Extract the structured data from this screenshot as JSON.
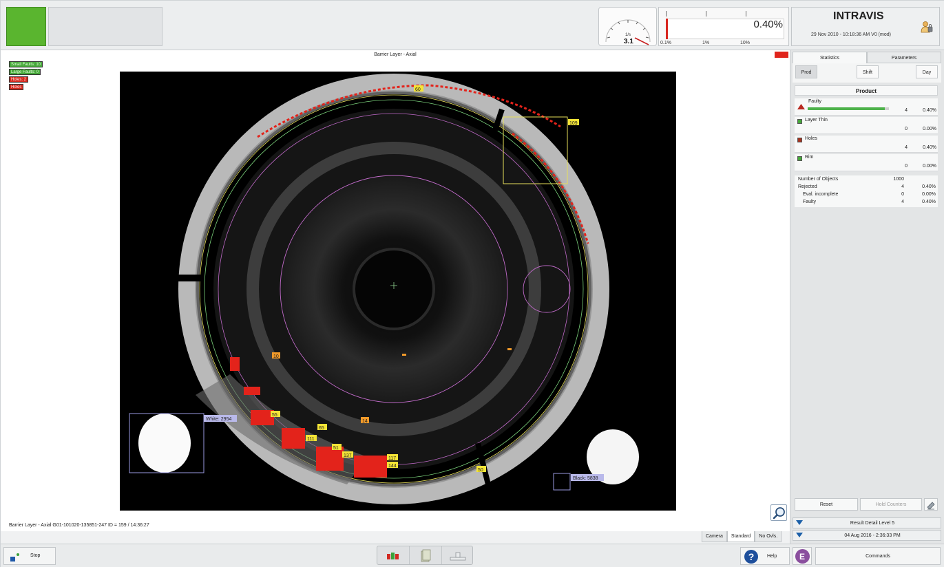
{
  "header": {
    "gauge": {
      "unit": "1/s",
      "value": "3.1"
    },
    "reject_meter": {
      "value": "0.40%",
      "fill_fraction": 0.018,
      "ticks": [
        "0.1%",
        "1%",
        "10%"
      ]
    },
    "brand": {
      "title": "INTRAVIS",
      "datetime": "29 Nov 2010 - 10:18:36 AM  V0 (mod)"
    }
  },
  "view": {
    "title": "Barrier Layer - Axial",
    "caption": "Barrier Layer - Axial G01-101020-135851-247  ID = 159 / 14:36:27",
    "legend": [
      {
        "label": "Small Faults: 10",
        "color": "green"
      },
      {
        "label": "Large Faults: 0",
        "color": "green"
      },
      {
        "label": "Holes: 2",
        "color": "red"
      },
      {
        "label": "Holes",
        "color": "red"
      }
    ],
    "tags": {
      "yellow": [
        "60",
        "109",
        "55",
        "111",
        "51",
        "137",
        "117",
        "144",
        "50",
        "65"
      ],
      "orange": [
        "10",
        "14"
      ],
      "white_label": "White: 2954",
      "black_label": "Black: 5838"
    },
    "tabs": [
      "Camera",
      "Standard",
      "No Ovls."
    ],
    "active_tab": "Standard"
  },
  "stats": {
    "tabs": [
      "Statistics",
      "Parameters"
    ],
    "active_tab": "Statistics",
    "periods": [
      "Prod",
      "Shift",
      "Day"
    ],
    "active_period": "Prod",
    "section_title": "Product",
    "faults": [
      {
        "label": "Faulty",
        "count": "4",
        "pct": "0.40%",
        "icon": "warning-triangle-icon"
      },
      {
        "label": "Layer Thin",
        "count": "0",
        "pct": "0.00%",
        "icon": "green-square-icon"
      },
      {
        "label": "Holes",
        "count": "4",
        "pct": "0.40%",
        "icon": "red-square-icon"
      },
      {
        "label": "Rim",
        "count": "0",
        "pct": "0.00%",
        "icon": "green-square-icon"
      }
    ],
    "faulty_bar_fraction": 0.95,
    "summary": [
      {
        "label": "Number of Objects",
        "count": "1000",
        "pct": ""
      },
      {
        "label": "Rejected",
        "count": "4",
        "pct": "0.40%"
      },
      {
        "label": "Eval. incomplete",
        "count": "0",
        "pct": "0.00%"
      },
      {
        "label": "Faulty",
        "count": "4",
        "pct": "0.40%"
      }
    ],
    "reset_label": "Reset",
    "hold_label": "Hold Counters",
    "result_detail": "Result Detail Level 5",
    "result_date": "04 Aug 2016 - 2:36:33 PM"
  },
  "footer": {
    "stop_label": "Stop",
    "help_label": "Help",
    "e_label": "E",
    "commands_label": "Commands"
  },
  "colors": {
    "ok_green": "#5ab52f",
    "fault_red": "#d8261f",
    "tag_yellow": "#f4e436",
    "tag_orange": "#f19a2a"
  }
}
